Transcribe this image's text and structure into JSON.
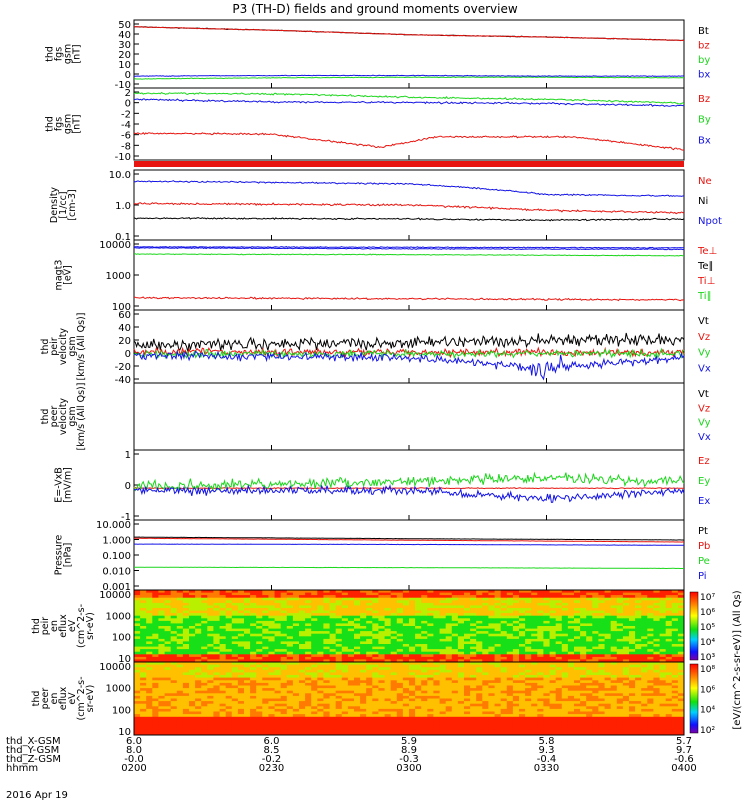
{
  "title": "P3 (TH-D) fields and ground moments overview",
  "date_label": "2016 Apr 19",
  "colors": {
    "black": "#000000",
    "red": "#e8140f",
    "green": "#1cd61c",
    "blue": "#1414e6"
  },
  "panels": [
    {
      "ylabel": [
        "thd",
        "fgs",
        "gsm",
        "[nT]"
      ],
      "yticks": [
        "50",
        "40",
        "30",
        "20",
        "10",
        "0",
        "-10"
      ],
      "legend": [
        {
          "text": "Bt",
          "color": "black"
        },
        {
          "text": "bz",
          "color": "red"
        },
        {
          "text": "by",
          "color": "green"
        },
        {
          "text": "bx",
          "color": "blue"
        }
      ]
    },
    {
      "ylabel": [
        "thd",
        "fgs",
        "gsm",
        "[nT]"
      ],
      "yticks": [
        "2",
        "0",
        "-2",
        "-4",
        "-6",
        "-8",
        "-10"
      ],
      "legend": [
        {
          "text": "Bz",
          "color": "red"
        },
        {
          "text": "By",
          "color": "green"
        },
        {
          "text": "Bx",
          "color": "blue"
        }
      ]
    },
    {
      "ylabel": [
        "Density",
        "[1/cc]",
        "[cm-3]"
      ],
      "yticks": [
        "10.0",
        "1.0",
        "0.1"
      ],
      "legend": [
        {
          "text": "Ne",
          "color": "red"
        },
        {
          "text": "Ni",
          "color": "black"
        },
        {
          "text": "Npot",
          "color": "blue"
        }
      ]
    },
    {
      "ylabel": [
        "magt3",
        "[eV]"
      ],
      "yticks": [
        "10000",
        "1000",
        "100"
      ],
      "legend": [
        {
          "text": "Te⊥",
          "color": "red"
        },
        {
          "text": "Te∥",
          "color": "black"
        },
        {
          "text": "Ti⊥",
          "color": "red"
        },
        {
          "text": "Ti∥",
          "color": "green"
        }
      ]
    },
    {
      "ylabel": [
        "thd",
        "peir",
        "velocity",
        "gsm",
        "[km/s (All Qs)]"
      ],
      "yticks": [
        "60",
        "40",
        "20",
        "0",
        "-20",
        "-40"
      ],
      "legend": [
        {
          "text": "Vt",
          "color": "black"
        },
        {
          "text": "Vz",
          "color": "red"
        },
        {
          "text": "Vy",
          "color": "green"
        },
        {
          "text": "Vx",
          "color": "blue"
        }
      ]
    },
    {
      "ylabel": [
        "thd",
        "peer",
        "velocity",
        "gsm",
        "[km/s (All Qs)]"
      ],
      "yticks": [],
      "legend": [
        {
          "text": "Vt",
          "color": "black"
        },
        {
          "text": "Vz",
          "color": "red"
        },
        {
          "text": "Vy",
          "color": "green"
        },
        {
          "text": "Vx",
          "color": "blue"
        }
      ]
    },
    {
      "ylabel": [
        "E=-VxB",
        "[mV/m]"
      ],
      "yticks": [
        "1",
        "0",
        "-1"
      ],
      "legend": [
        {
          "text": "Ez",
          "color": "red"
        },
        {
          "text": "Ey",
          "color": "green"
        },
        {
          "text": "Ex",
          "color": "blue"
        }
      ]
    },
    {
      "ylabel": [
        "Pressure",
        "[nPa]"
      ],
      "yticks": [
        "10.000",
        "1.000",
        "0.100",
        "0.010",
        "0.001"
      ],
      "legend": [
        {
          "text": "Pt",
          "color": "black"
        },
        {
          "text": "Pb",
          "color": "red"
        },
        {
          "text": "Pe",
          "color": "green"
        },
        {
          "text": "Pi",
          "color": "blue"
        }
      ]
    },
    {
      "ylabel": [
        "thd",
        "peir",
        "en",
        "eflux",
        "eV",
        "(cm^2-s-",
        "sr-eV)"
      ],
      "yticks": [
        "10000",
        "1000",
        "100",
        "10"
      ],
      "legend": []
    },
    {
      "ylabel": [
        "thd",
        "peer",
        "en",
        "eflux",
        "eV",
        "(cm^2-s-",
        "sr-eV)"
      ],
      "yticks": [
        "10000",
        "1000",
        "100",
        "10"
      ],
      "legend": []
    }
  ],
  "colorbar": {
    "label": "[eV/(cm^2-s-sr-eV)] (All Qs)",
    "ion_ticks": [
      "10⁷",
      "10⁶",
      "10⁵",
      "10⁴",
      "10³"
    ],
    "electron_ticks": [
      "10⁸",
      "10⁶",
      "10⁴",
      "10²"
    ]
  },
  "xaxis": {
    "row_labels": [
      "thd_X-GSM",
      "thd_Y-GSM",
      "thd_Z-GSM",
      "hhmm"
    ],
    "columns": [
      {
        "x": "6.0",
        "y": "8.0",
        "z": "-0.0",
        "t": "0200"
      },
      {
        "x": "6.0",
        "y": "8.5",
        "z": "-0.2",
        "t": "0230"
      },
      {
        "x": "5.9",
        "y": "8.9",
        "z": "-0.3",
        "t": "0300"
      },
      {
        "x": "5.8",
        "y": "9.3",
        "z": "-0.4",
        "t": "0330"
      },
      {
        "x": "5.7",
        "y": "9.7",
        "z": "-0.6",
        "t": "0400"
      }
    ]
  },
  "chart_data": [
    {
      "type": "line",
      "title": "P3 (TH-D) fields and ground moments overview",
      "ylabel": "thd fgs gsm [nT]",
      "ylim": [
        -10,
        50
      ],
      "x_range": [
        "02:00",
        "04:00"
      ],
      "series": [
        {
          "name": "Bt",
          "points": [
            [
              0,
              44
            ],
            [
              0.25,
              41
            ],
            [
              0.5,
              37
            ],
            [
              0.75,
              35
            ],
            [
              1,
              32
            ]
          ]
        },
        {
          "name": "bz",
          "points": [
            [
              0,
              44
            ],
            [
              0.25,
              41
            ],
            [
              0.5,
              37
            ],
            [
              0.75,
              35
            ],
            [
              1,
              32
            ]
          ]
        },
        {
          "name": "by",
          "points": [
            [
              0,
              -2
            ],
            [
              0.25,
              -1
            ],
            [
              0.5,
              -0.5
            ],
            [
              0.75,
              -0.5
            ],
            [
              1,
              -1
            ]
          ]
        },
        {
          "name": "bx",
          "points": [
            [
              0,
              0.5
            ],
            [
              0.25,
              1
            ],
            [
              0.5,
              1
            ],
            [
              0.75,
              0.5
            ],
            [
              1,
              0.5
            ]
          ]
        }
      ]
    },
    {
      "type": "line",
      "ylabel": "thd fgs gsm [nT]",
      "ylim": [
        -11,
        3
      ],
      "series": [
        {
          "name": "Bz",
          "points": [
            [
              0,
              -5.8
            ],
            [
              0.25,
              -6
            ],
            [
              0.45,
              -8.5
            ],
            [
              0.55,
              -6.5
            ],
            [
              0.8,
              -6.5
            ],
            [
              1,
              -9
            ]
          ]
        },
        {
          "name": "By",
          "points": [
            [
              0,
              2
            ],
            [
              0.3,
              1.8
            ],
            [
              0.5,
              1.2
            ],
            [
              0.8,
              0.7
            ],
            [
              1,
              0
            ]
          ]
        },
        {
          "name": "Bx",
          "points": [
            [
              0,
              0.8
            ],
            [
              0.25,
              0.3
            ],
            [
              0.5,
              0.2
            ],
            [
              0.75,
              0
            ],
            [
              1,
              -0.5
            ]
          ]
        }
      ]
    },
    {
      "type": "line",
      "ylabel": "Density [1/cc] [cm-3]",
      "ylim": [
        0.1,
        10
      ],
      "yscale": "log",
      "series": [
        {
          "name": "Ne",
          "points": [
            [
              0,
              1.1
            ],
            [
              0.5,
              1.0
            ],
            [
              0.75,
              0.7
            ],
            [
              1,
              0.6
            ]
          ]
        },
        {
          "name": "Ni",
          "points": [
            [
              0,
              0.42
            ],
            [
              0.5,
              0.4
            ],
            [
              0.75,
              0.37
            ],
            [
              1,
              0.4
            ]
          ]
        },
        {
          "name": "Npot",
          "points": [
            [
              0,
              4.8
            ],
            [
              0.5,
              4.0
            ],
            [
              0.75,
              2.0
            ],
            [
              1,
              1.8
            ]
          ]
        }
      ]
    },
    {
      "type": "line",
      "ylabel": "magt3 [eV]",
      "ylim": [
        50,
        12000
      ],
      "yscale": "log",
      "series": [
        {
          "name": "Te⊥",
          "points": [
            [
              0,
              7000
            ],
            [
              0.5,
              6800
            ],
            [
              1,
              6500
            ]
          ]
        },
        {
          "name": "Te∥",
          "points": [
            [
              0,
              6500
            ],
            [
              0.5,
              6000
            ],
            [
              1,
              5800
            ]
          ]
        },
        {
          "name": "Ti⊥",
          "points": [
            [
              0,
              130
            ],
            [
              0.5,
              120
            ],
            [
              1,
              110
            ]
          ]
        },
        {
          "name": "Ti∥",
          "points": [
            [
              0,
              4000
            ],
            [
              0.5,
              3800
            ],
            [
              1,
              3500
            ]
          ]
        }
      ]
    },
    {
      "type": "line",
      "ylabel": "thd peir velocity gsm [km/s (All Qs)]",
      "ylim": [
        -40,
        60
      ],
      "series": [
        {
          "name": "Vt",
          "points": [
            [
              0,
              12
            ],
            [
              0.5,
              15
            ],
            [
              0.75,
              18
            ],
            [
              1,
              20
            ]
          ]
        },
        {
          "name": "Vz",
          "points": [
            [
              0,
              3
            ],
            [
              0.5,
              2
            ],
            [
              1,
              2
            ]
          ]
        },
        {
          "name": "Vy",
          "points": [
            [
              0,
              0
            ],
            [
              0.5,
              0
            ],
            [
              1,
              0
            ]
          ]
        },
        {
          "name": "Vx",
          "points": [
            [
              0,
              -2
            ],
            [
              0.5,
              -5
            ],
            [
              0.75,
              -20
            ],
            [
              1,
              -5
            ]
          ]
        }
      ]
    },
    {
      "type": "line",
      "ylabel": "thd peer velocity gsm [km/s (All Qs)]",
      "series": []
    },
    {
      "type": "line",
      "ylabel": "E=-VxB [mV/m]",
      "ylim": [
        -1.5,
        1.8
      ],
      "series": [
        {
          "name": "Ez",
          "points": [
            [
              0,
              0
            ],
            [
              0.5,
              0
            ],
            [
              1,
              0
            ]
          ]
        },
        {
          "name": "Ey",
          "points": [
            [
              0,
              0.1
            ],
            [
              0.5,
              0.3
            ],
            [
              0.75,
              0.5
            ],
            [
              1,
              0.3
            ]
          ]
        },
        {
          "name": "Ex",
          "points": [
            [
              0,
              -0.1
            ],
            [
              0.5,
              -0.1
            ],
            [
              0.75,
              -0.5
            ],
            [
              1,
              -0.1
            ]
          ]
        }
      ]
    },
    {
      "type": "line",
      "ylabel": "Pressure [nPa]",
      "ylim": [
        0.001,
        10
      ],
      "yscale": "log",
      "series": [
        {
          "name": "Pt",
          "points": [
            [
              0,
              1.05
            ],
            [
              0.5,
              0.85
            ],
            [
              1,
              0.72
            ]
          ]
        },
        {
          "name": "Pb",
          "points": [
            [
              0,
              0.9
            ],
            [
              0.5,
              0.7
            ],
            [
              1,
              0.55
            ]
          ]
        },
        {
          "name": "Pe",
          "points": [
            [
              0,
              0.02
            ],
            [
              0.5,
              0.019
            ],
            [
              1,
              0.017
            ]
          ]
        },
        {
          "name": "Pi",
          "points": [
            [
              0,
              0.42
            ],
            [
              0.5,
              0.4
            ],
            [
              1,
              0.36
            ]
          ]
        }
      ]
    },
    {
      "type": "heatmap",
      "ylabel": "thd peir en eflux eV (cm^2-s-sr-eV)",
      "ylim": [
        5,
        30000
      ],
      "yscale": "log",
      "clim": [
        1000,
        10000000
      ]
    },
    {
      "type": "heatmap",
      "ylabel": "thd peer en eflux eV (cm^2-s-sr-eV)",
      "ylim": [
        5,
        30000
      ],
      "yscale": "log",
      "clim": [
        100,
        100000000
      ]
    }
  ]
}
